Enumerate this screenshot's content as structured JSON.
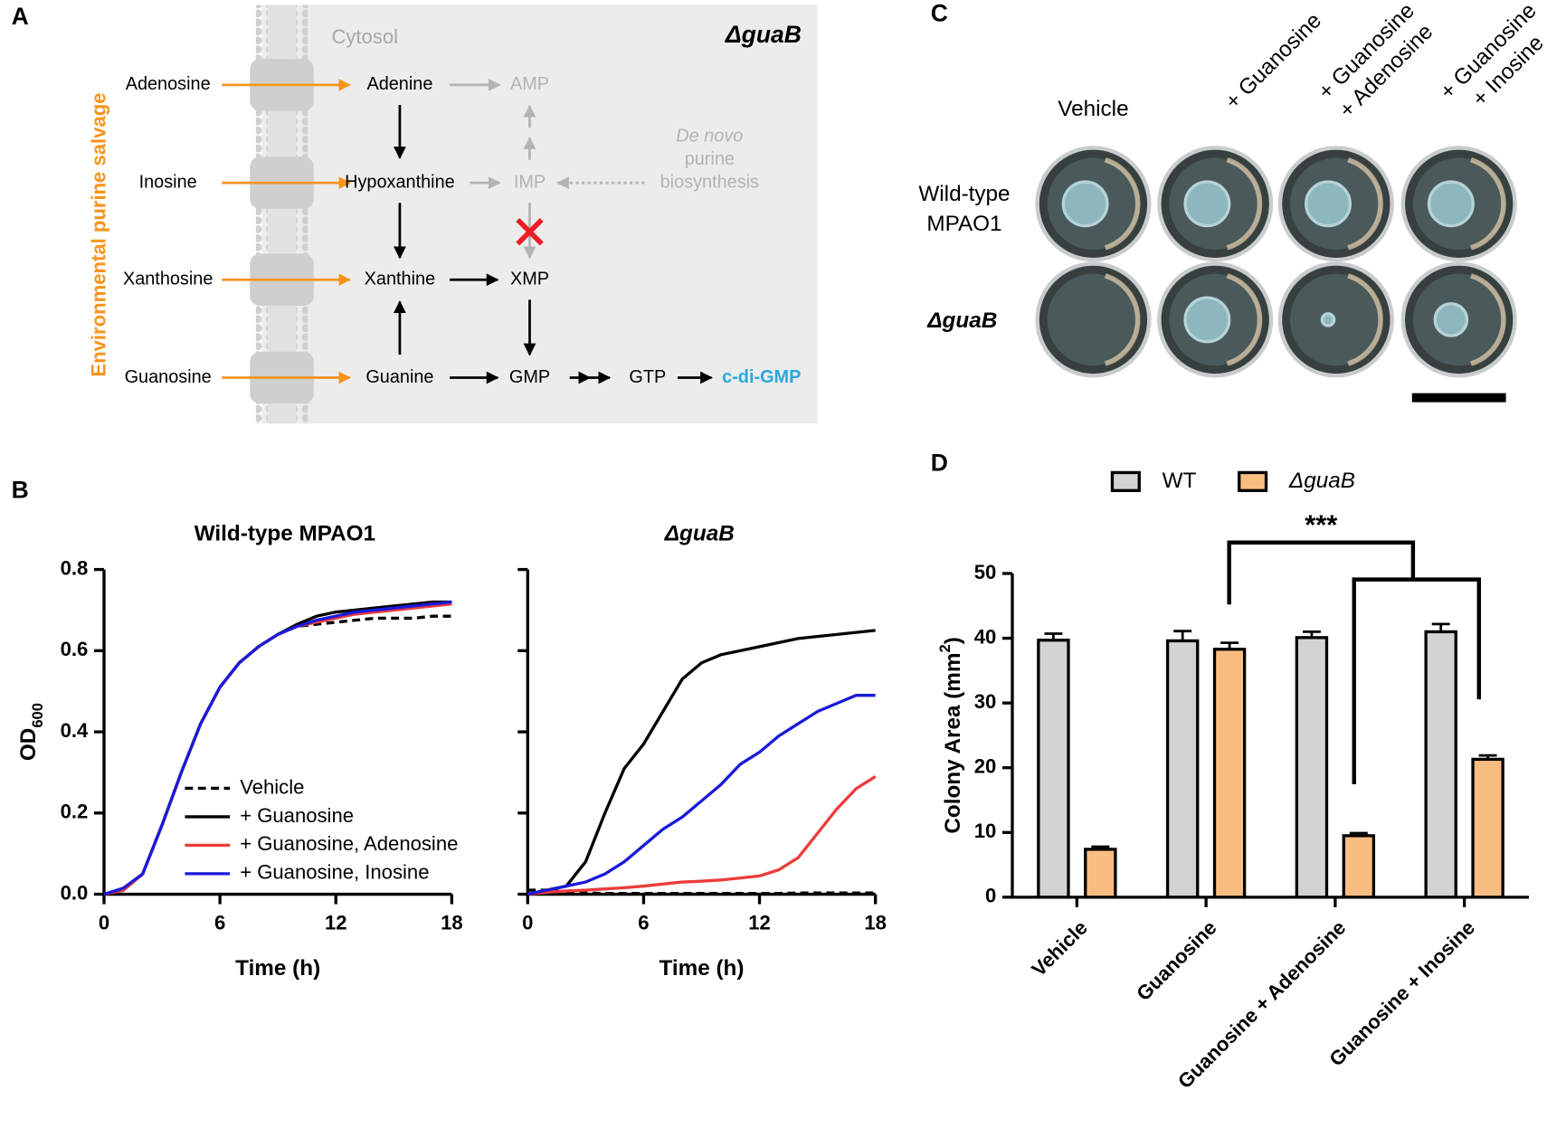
{
  "panel_labels": [
    "A",
    "B",
    "C",
    "D"
  ],
  "diagram": {
    "cytosol": "Cytosol",
    "strain": "ΔguaB",
    "salvage": "Environmental purine salvage",
    "external": [
      "Adenosine",
      "Inosine",
      "Xanthosine",
      "Guanosine"
    ],
    "bases": [
      "Adenine",
      "Hypoxanthine",
      "Xanthine",
      "Guanine"
    ],
    "nucleotides": [
      "AMP",
      "IMP",
      "XMP",
      "GMP"
    ],
    "gtp": "GTP",
    "product": "c-di-GMP",
    "de_novo": [
      "De novo",
      "purine",
      "biosynthesis"
    ]
  },
  "plates": {
    "columns": [
      [
        "Vehicle"
      ],
      [
        "+ Guanosine"
      ],
      [
        "+ Guanosine",
        "+ Adenosine"
      ],
      [
        "+ Guanosine",
        "+ Inosine"
      ]
    ],
    "rows": [
      [
        "Wild-type",
        "MPAO1"
      ],
      [
        "ΔguaB"
      ]
    ]
  },
  "chart_data": [
    {
      "type": "line",
      "title": "Wild-type  MPAO1",
      "xlabel": "Time (h)",
      "ylabel": [
        "OD",
        "600"
      ],
      "x": [
        0,
        1,
        2,
        3,
        4,
        5,
        6,
        7,
        8,
        9,
        10,
        11,
        12,
        13,
        14,
        15,
        16,
        17,
        18
      ],
      "xlim": [
        0,
        18
      ],
      "xticks": [
        0,
        6,
        12,
        18
      ],
      "ylim": [
        0,
        0.8
      ],
      "yticks": [
        {
          "value": 0,
          "label": "0.0"
        },
        0.2,
        0.4,
        0.6,
        0.8
      ],
      "ytick_labels": true,
      "series": [
        {
          "name": "Vehicle",
          "color": "#000000",
          "dash": true,
          "values": [
            0,
            0.01,
            0.05,
            0.17,
            0.3,
            0.42,
            0.51,
            0.57,
            0.61,
            0.64,
            0.66,
            0.665,
            0.67,
            0.675,
            0.68,
            0.68,
            0.68,
            0.685,
            0.685
          ]
        },
        {
          "name": "+ Guanosine",
          "color": "#000000",
          "dash": false,
          "values": [
            0,
            0.01,
            0.05,
            0.17,
            0.3,
            0.42,
            0.51,
            0.57,
            0.61,
            0.64,
            0.665,
            0.685,
            0.695,
            0.7,
            0.705,
            0.71,
            0.715,
            0.72,
            0.72
          ]
        },
        {
          "name": "+ Guanosine, Adenosine",
          "color": "#ee3b3b",
          "dash": false,
          "values": [
            0,
            0.01,
            0.05,
            0.17,
            0.3,
            0.42,
            0.51,
            0.57,
            0.61,
            0.64,
            0.66,
            0.67,
            0.68,
            0.69,
            0.695,
            0.7,
            0.705,
            0.71,
            0.715
          ]
        },
        {
          "name": "+ Guanosine, Inosine",
          "color": "#1a1adb",
          "dash": false,
          "values": [
            0,
            0.015,
            0.05,
            0.17,
            0.3,
            0.42,
            0.51,
            0.57,
            0.61,
            0.64,
            0.66,
            0.675,
            0.685,
            0.695,
            0.7,
            0.705,
            0.71,
            0.715,
            0.72
          ]
        }
      ]
    },
    {
      "type": "line",
      "title": "ΔguaB",
      "xlabel": "Time (h)",
      "x": [
        0,
        1,
        2,
        3,
        4,
        5,
        6,
        7,
        8,
        9,
        10,
        11,
        12,
        13,
        14,
        15,
        16,
        17,
        18
      ],
      "xlim": [
        0,
        18
      ],
      "xticks": [
        0,
        6,
        12,
        18
      ],
      "ylim": [
        0,
        0.8
      ],
      "yticks": [
        0,
        0.2,
        0.4,
        0.6,
        0.8
      ],
      "ytick_labels": false,
      "series": [
        {
          "color": "#000000",
          "dash": true,
          "values": [
            0.01,
            0.01,
            0.005,
            0.003,
            0.002,
            0.002,
            0.002,
            0.002,
            0.002,
            0.002,
            0.002,
            0.002,
            0.002,
            0.002,
            0.003,
            0.003,
            0.003,
            0.003,
            0.003
          ]
        },
        {
          "color": "#000000",
          "dash": false,
          "values": [
            0,
            0.01,
            0.02,
            0.08,
            0.2,
            0.31,
            0.37,
            0.45,
            0.53,
            0.57,
            0.59,
            0.6,
            0.61,
            0.62,
            0.63,
            0.635,
            0.64,
            0.645,
            0.65
          ]
        },
        {
          "color": "#ee3b3b",
          "dash": false,
          "values": [
            0,
            0.005,
            0.008,
            0.01,
            0.013,
            0.016,
            0.02,
            0.025,
            0.03,
            0.032,
            0.035,
            0.04,
            0.045,
            0.06,
            0.09,
            0.15,
            0.21,
            0.26,
            0.29
          ]
        },
        {
          "color": "#1a1adb",
          "dash": false,
          "values": [
            0,
            0.01,
            0.02,
            0.03,
            0.05,
            0.08,
            0.12,
            0.16,
            0.19,
            0.23,
            0.27,
            0.32,
            0.35,
            0.39,
            0.42,
            0.45,
            0.47,
            0.49,
            0.49
          ]
        }
      ]
    },
    {
      "type": "bar",
      "ylabel": [
        "Colony Area (mm",
        "2",
        ")"
      ],
      "categories": [
        "Vehicle",
        "Guanosine",
        "Guanosine + Adenosine",
        "Guanosine + Inosine"
      ],
      "ylim": [
        0,
        50
      ],
      "yticks": [
        0,
        10,
        20,
        30,
        40,
        50
      ],
      "significance": "***",
      "series": [
        {
          "name": "WT",
          "color": "#d3d3d3",
          "values": [
            39.7,
            39.6,
            40.1,
            41.0
          ],
          "errors": [
            1.0,
            1.5,
            0.9,
            1.2
          ]
        },
        {
          "name": "ΔguaB",
          "color": "#f9bd82",
          "values": [
            7.4,
            38.3,
            9.5,
            21.3
          ],
          "errors": [
            0.4,
            1.0,
            0.4,
            0.6
          ]
        }
      ]
    }
  ]
}
